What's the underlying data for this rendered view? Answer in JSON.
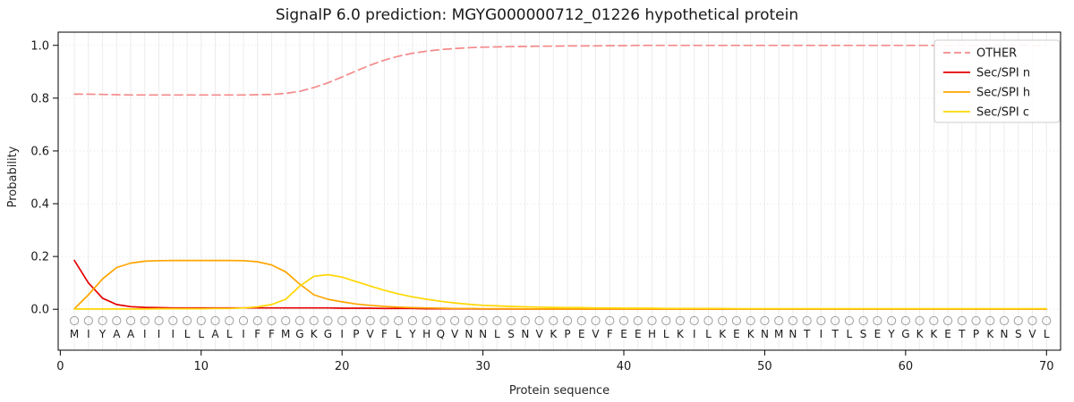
{
  "figure": {
    "title": "SignalP 6.0 prediction: MGYG000000712_01226 hypothetical protein"
  },
  "chart_data": {
    "type": "line",
    "title": "SignalP 6.0 prediction: MGYG000000712_01226 hypothetical protein",
    "xlabel": "Protein sequence",
    "ylabel": "Probability",
    "xticks": [
      0,
      10,
      20,
      30,
      40,
      50,
      60,
      70
    ],
    "yticks": [
      0.0,
      0.2,
      0.4,
      0.6,
      0.8,
      1.0
    ],
    "xlim": [
      -0.15,
      71
    ],
    "ylim": [
      -0.155,
      1.05
    ],
    "grid": "vertical-line-per-residue",
    "legend_position": "upper-right",
    "x_start": 1,
    "sequence": "MIYAAIIILLALIFFMGKGIPVFLYHQVNNLSNVKPEVFEEHLKILKEKNMNTITLSEYGKKETPKNSVL",
    "marker_row": "open-circle-per-residue",
    "series": [
      {
        "name": "OTHER",
        "color": "#f48a8a",
        "dashed": true,
        "values": [
          0.815,
          0.815,
          0.814,
          0.813,
          0.812,
          0.812,
          0.812,
          0.812,
          0.812,
          0.812,
          0.812,
          0.812,
          0.812,
          0.813,
          0.814,
          0.818,
          0.826,
          0.84,
          0.858,
          0.88,
          0.903,
          0.925,
          0.944,
          0.959,
          0.97,
          0.978,
          0.984,
          0.988,
          0.991,
          0.993,
          0.994,
          0.995,
          0.996,
          0.997,
          0.997,
          0.998,
          0.998,
          0.998,
          0.999,
          0.999,
          1.0,
          1.0,
          1.0,
          1.0,
          1.0,
          1.0,
          1.0,
          1.0,
          1.0,
          1.0,
          1.0,
          1.0,
          1.0,
          1.0,
          1.0,
          1.0,
          1.0,
          1.0,
          1.0,
          1.0,
          1.0,
          1.0,
          1.0,
          1.0,
          1.0,
          1.0,
          1.0,
          1.0,
          1.0,
          1.0
        ]
      },
      {
        "name": "Sec/SPI n",
        "color": "#e50000",
        "dashed": false,
        "values": [
          0.185,
          0.1,
          0.042,
          0.018,
          0.01,
          0.007,
          0.006,
          0.005,
          0.005,
          0.005,
          0.005,
          0.005,
          0.005,
          0.005,
          0.005,
          0.005,
          0.005,
          0.005,
          0.005,
          0.004,
          0.004,
          0.004,
          0.003,
          0.003,
          0.003,
          0.002,
          0.002,
          0.002,
          0.002,
          0.001,
          0.001,
          0.001,
          0.001,
          0.001,
          0.001,
          0.001,
          0.001,
          0.001,
          0.001,
          0.001,
          0.001,
          0.001,
          0.001,
          0.001,
          0.001,
          0.001,
          0.001,
          0.001,
          0.001,
          0.001,
          0.001,
          0.001,
          0.001,
          0.001,
          0.001,
          0.001,
          0.001,
          0.001,
          0.001,
          0.001,
          0.001,
          0.001,
          0.001,
          0.001,
          0.001,
          0.001,
          0.001,
          0.001,
          0.001,
          0.001
        ]
      },
      {
        "name": "Sec/SPI h",
        "color": "#ffa500",
        "dashed": false,
        "values": [
          0.002,
          0.055,
          0.115,
          0.158,
          0.175,
          0.182,
          0.184,
          0.185,
          0.185,
          0.185,
          0.185,
          0.185,
          0.184,
          0.18,
          0.168,
          0.142,
          0.095,
          0.055,
          0.038,
          0.028,
          0.02,
          0.015,
          0.011,
          0.008,
          0.006,
          0.005,
          0.004,
          0.003,
          0.003,
          0.002,
          0.002,
          0.002,
          0.001,
          0.001,
          0.001,
          0.001,
          0.001,
          0.001,
          0.001,
          0.001,
          0.001,
          0.001,
          0.001,
          0.001,
          0.001,
          0.001,
          0.001,
          0.001,
          0.001,
          0.001,
          0.001,
          0.001,
          0.001,
          0.001,
          0.001,
          0.001,
          0.001,
          0.001,
          0.001,
          0.001,
          0.001,
          0.001,
          0.001,
          0.001,
          0.001,
          0.001,
          0.001,
          0.001,
          0.001,
          0.001
        ]
      },
      {
        "name": "Sec/SPI c",
        "color": "#ffd700",
        "dashed": false,
        "values": [
          0.001,
          0.001,
          0.001,
          0.001,
          0.001,
          0.001,
          0.002,
          0.002,
          0.002,
          0.002,
          0.003,
          0.003,
          0.005,
          0.009,
          0.018,
          0.038,
          0.088,
          0.125,
          0.131,
          0.122,
          0.105,
          0.088,
          0.072,
          0.058,
          0.047,
          0.038,
          0.03,
          0.024,
          0.019,
          0.015,
          0.013,
          0.011,
          0.009,
          0.008,
          0.007,
          0.006,
          0.006,
          0.005,
          0.005,
          0.004,
          0.004,
          0.004,
          0.003,
          0.003,
          0.003,
          0.003,
          0.003,
          0.002,
          0.002,
          0.002,
          0.002,
          0.002,
          0.002,
          0.002,
          0.002,
          0.002,
          0.002,
          0.002,
          0.002,
          0.002,
          0.002,
          0.002,
          0.002,
          0.002,
          0.002,
          0.002,
          0.002,
          0.002,
          0.002,
          0.002
        ]
      }
    ],
    "style_colors": {
      "gridline": "#ececec",
      "h_gridline": "#dddddd",
      "spine": "#000000",
      "tick_label": "#262626",
      "sequence_letter": "#262626",
      "marker_circle": "#9e9e9e",
      "legend_border": "#cccccc"
    }
  }
}
